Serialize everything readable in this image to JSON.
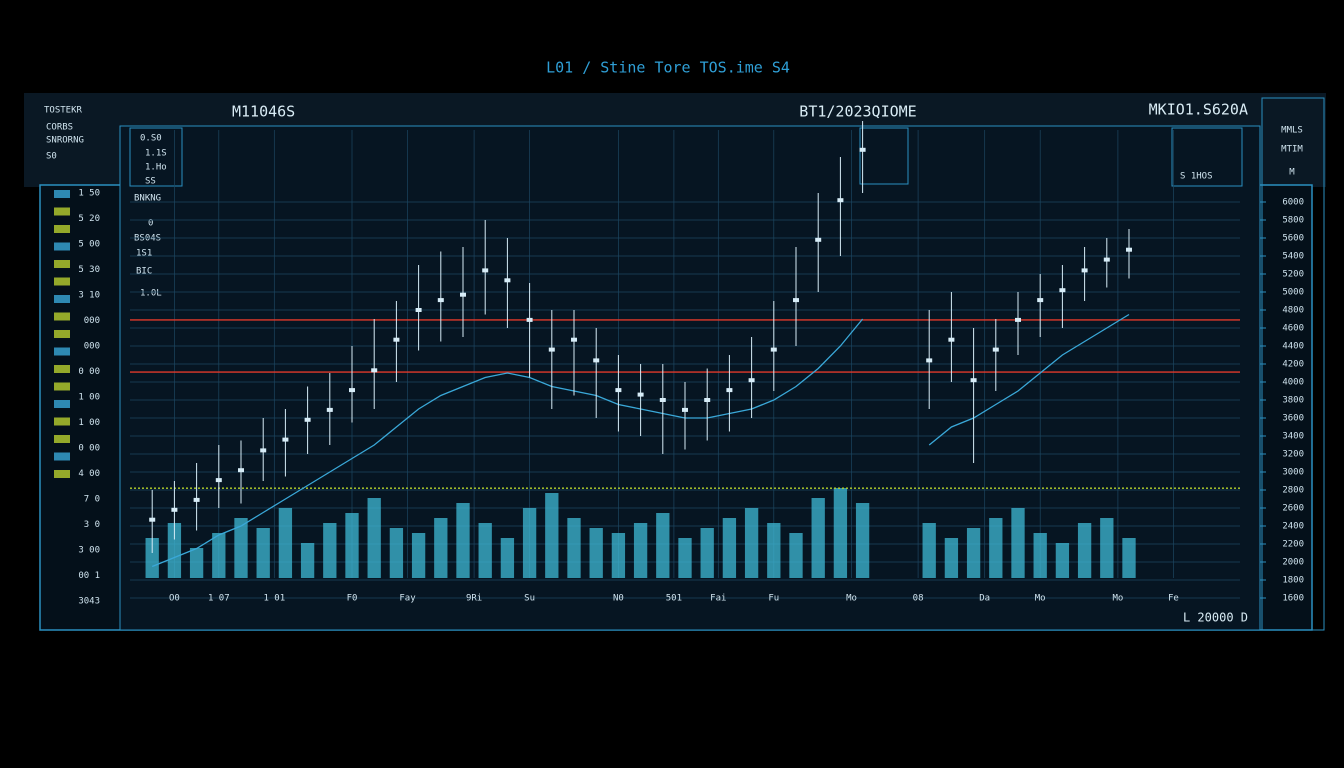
{
  "header": {
    "title": "L01 / Stine Tore TOS.ime S4"
  },
  "toolbar": {
    "left": [
      "TOSTEKR",
      "CORBS",
      "SNRORNG",
      "S0"
    ],
    "code": "0.S0",
    "symbol": "M11046S",
    "right": "MKIO1.S620A",
    "side": [
      "MMLS",
      "MTIM",
      "M"
    ],
    "box": [
      "1.1S",
      "1.Ho",
      "SS",
      "S 1HOS"
    ]
  },
  "left_panel": {
    "labels": [
      "BNKNG",
      "0",
      "BS04S",
      "1S1",
      "BIC",
      "1.0L"
    ]
  },
  "left_axis": [
    "1 50",
    "5 20",
    "5 00",
    "5 30",
    "3 10",
    "000",
    "000",
    "0 00",
    "1 00",
    "1 00",
    "0 00",
    "4 00",
    "7 0",
    "3 0",
    "3 00",
    "00 1",
    "3043"
  ],
  "footer": {
    "total": "L 20000 D"
  },
  "chart_data": {
    "type": "candlestick",
    "title": "BT1/2023QIOME",
    "x": [
      0,
      1,
      2,
      3,
      4,
      5,
      6,
      7,
      8,
      9,
      10,
      11,
      12,
      13,
      14,
      15,
      16,
      17,
      18,
      19,
      20,
      21,
      22,
      23,
      24,
      25,
      26,
      27,
      28,
      29,
      30,
      31,
      32,
      33,
      34,
      35,
      36,
      37,
      38,
      39,
      40,
      41,
      42,
      43,
      44
    ],
    "close": [
      2470,
      2580,
      2690,
      2910,
      3020,
      3240,
      3360,
      3580,
      3690,
      3910,
      4130,
      4470,
      4800,
      4910,
      4970,
      5240,
      5130,
      4690,
      4360,
      4470,
      4240,
      3910,
      3860,
      3800,
      3690,
      3800,
      3910,
      4020,
      4360,
      4910,
      5580,
      6020,
      6580,
      null,
      null,
      4240,
      4470,
      4020,
      4360,
      4690,
      4910,
      5020,
      5240,
      5360,
      5470
    ],
    "high": [
      2800,
      2900,
      3100,
      3300,
      3350,
      3600,
      3700,
      3950,
      4100,
      4400,
      4700,
      4900,
      5300,
      5450,
      5500,
      5800,
      5600,
      5100,
      4800,
      4800,
      4600,
      4300,
      4200,
      4200,
      4000,
      4150,
      4300,
      4500,
      4900,
      5500,
      6100,
      6500,
      6900,
      null,
      null,
      4800,
      5000,
      4600,
      4700,
      5000,
      5200,
      5300,
      5500,
      5600,
      5700
    ],
    "low": [
      2100,
      2250,
      2350,
      2600,
      2650,
      2900,
      2950,
      3200,
      3300,
      3550,
      3700,
      4000,
      4350,
      4450,
      4500,
      4750,
      4600,
      4050,
      3700,
      3850,
      3600,
      3450,
      3400,
      3200,
      3250,
      3350,
      3450,
      3600,
      3900,
      4400,
      5000,
      5400,
      6100,
      null,
      null,
      3700,
      4000,
      3100,
      3900,
      4300,
      4500,
      4600,
      4900,
      5050,
      5150
    ],
    "ma": [
      1950,
      2050,
      2150,
      2300,
      2400,
      2550,
      2700,
      2850,
      3000,
      3150,
      3300,
      3500,
      3700,
      3850,
      3950,
      4050,
      4100,
      4050,
      3950,
      3900,
      3850,
      3750,
      3700,
      3650,
      3600,
      3600,
      3650,
      3700,
      3800,
      3950,
      4150,
      4400,
      4700,
      null,
      null,
      3300,
      3500,
      3600,
      3750,
      3900,
      4100,
      4300,
      4450,
      4600,
      4750
    ],
    "volume": [
      40,
      55,
      30,
      45,
      60,
      50,
      70,
      35,
      55,
      65,
      80,
      50,
      45,
      60,
      75,
      55,
      40,
      70,
      85,
      60,
      50,
      45,
      55,
      65,
      40,
      50,
      60,
      70,
      55,
      45,
      80,
      90,
      75,
      null,
      null,
      55,
      40,
      50,
      60,
      70,
      45,
      35,
      55,
      60,
      40
    ],
    "candle_color": "#d6ecf7",
    "ma_color": "#3aa8d8",
    "volume_color": "#3fb9d6",
    "levels": [
      {
        "value": 4690,
        "color": "#e0392b"
      },
      {
        "value": 4110,
        "color": "#e0392b"
      },
      {
        "value": 2820,
        "color": "#b6d12a",
        "dash": true
      }
    ],
    "xlim": [
      -1,
      49
    ],
    "xticks": [
      {
        "value": 1,
        "label": "O0"
      },
      {
        "value": 3,
        "label": "1 07"
      },
      {
        "value": 5.5,
        "label": "1 01"
      },
      {
        "value": 9,
        "label": "F0"
      },
      {
        "value": 11.5,
        "label": "Fay"
      },
      {
        "value": 14.5,
        "label": "9Ri"
      },
      {
        "value": 17,
        "label": "Su"
      },
      {
        "value": 21,
        "label": "N0"
      },
      {
        "value": 23.5,
        "label": "501"
      },
      {
        "value": 25.5,
        "label": "Fai"
      },
      {
        "value": 28,
        "label": "Fu"
      },
      {
        "value": 31.5,
        "label": "Mo"
      },
      {
        "value": 34.5,
        "label": "08"
      },
      {
        "value": 37.5,
        "label": "Da"
      },
      {
        "value": 40,
        "label": "Mo"
      },
      {
        "value": 43.5,
        "label": "Mo"
      },
      {
        "value": 46,
        "label": "Fe"
      }
    ],
    "ylim": [
      1600,
      6800
    ],
    "yticks": [
      1600,
      1800,
      2000,
      2200,
      2400,
      2600,
      2800,
      3000,
      3200,
      3400,
      3600,
      3800,
      4000,
      4200,
      4400,
      4600,
      4800,
      5000,
      5200,
      5400,
      5600,
      5800,
      6000
    ],
    "y2lim": [
      0,
      100
    ],
    "grid": true
  }
}
